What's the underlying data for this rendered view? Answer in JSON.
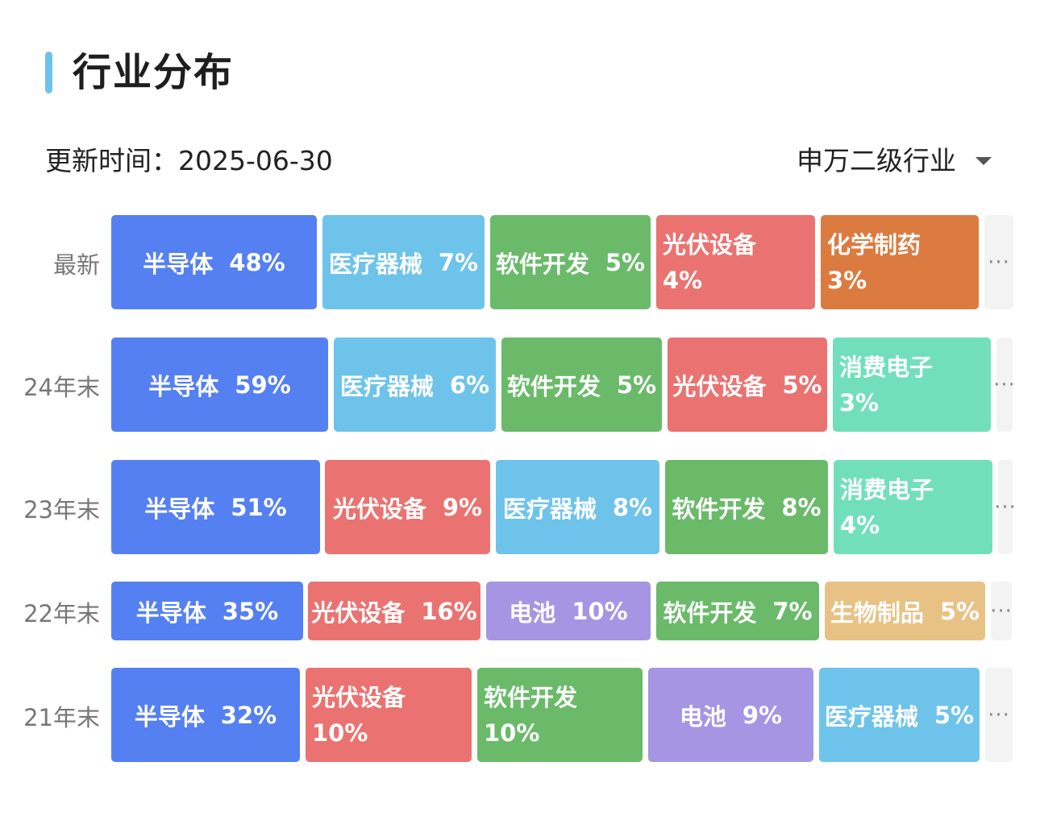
{
  "header": {
    "title": "行业分布",
    "update_label": "更新时间：2025-06-30",
    "classifier": "申万二级行业",
    "classifier_icon": "caret-down-icon"
  },
  "more_label": "···",
  "colors": {
    "accent_bar": "#6ec2ea",
    "半导体": "#5580f2",
    "医疗器械": "#6ec3ea",
    "软件开发": "#6aba6a",
    "光伏设备": "#ea7371",
    "化学制药": "#dc7b40",
    "消费电子": "#72dfbb",
    "电池": "#a595e3",
    "生物制品": "#e8c285"
  },
  "rows": [
    {
      "label": "最新",
      "segments": [
        {
          "name": "半导体",
          "pct": "48%"
        },
        {
          "name": "医疗器械",
          "pct": "7%"
        },
        {
          "name": "软件开发",
          "pct": "5%"
        },
        {
          "name": "光伏设备",
          "pct": "4%"
        },
        {
          "name": "化学制药",
          "pct": "3%"
        }
      ]
    },
    {
      "label": "24年末",
      "segments": [
        {
          "name": "半导体",
          "pct": "59%"
        },
        {
          "name": "医疗器械",
          "pct": "6%"
        },
        {
          "name": "软件开发",
          "pct": "5%"
        },
        {
          "name": "光伏设备",
          "pct": "5%"
        },
        {
          "name": "消费电子",
          "pct": "3%"
        }
      ]
    },
    {
      "label": "23年末",
      "segments": [
        {
          "name": "半导体",
          "pct": "51%"
        },
        {
          "name": "光伏设备",
          "pct": "9%"
        },
        {
          "name": "医疗器械",
          "pct": "8%"
        },
        {
          "name": "软件开发",
          "pct": "8%"
        },
        {
          "name": "消费电子",
          "pct": "4%"
        }
      ]
    },
    {
      "label": "22年末",
      "segments": [
        {
          "name": "半导体",
          "pct": "35%"
        },
        {
          "name": "光伏设备",
          "pct": "16%"
        },
        {
          "name": "电池",
          "pct": "10%"
        },
        {
          "name": "软件开发",
          "pct": "7%"
        },
        {
          "name": "生物制品",
          "pct": "5%"
        }
      ]
    },
    {
      "label": "21年末",
      "segments": [
        {
          "name": "半导体",
          "pct": "32%"
        },
        {
          "name": "光伏设备",
          "pct": "10%"
        },
        {
          "name": "软件开发",
          "pct": "10%"
        },
        {
          "name": "电池",
          "pct": "9%"
        },
        {
          "name": "医疗器械",
          "pct": "5%"
        }
      ]
    }
  ]
}
